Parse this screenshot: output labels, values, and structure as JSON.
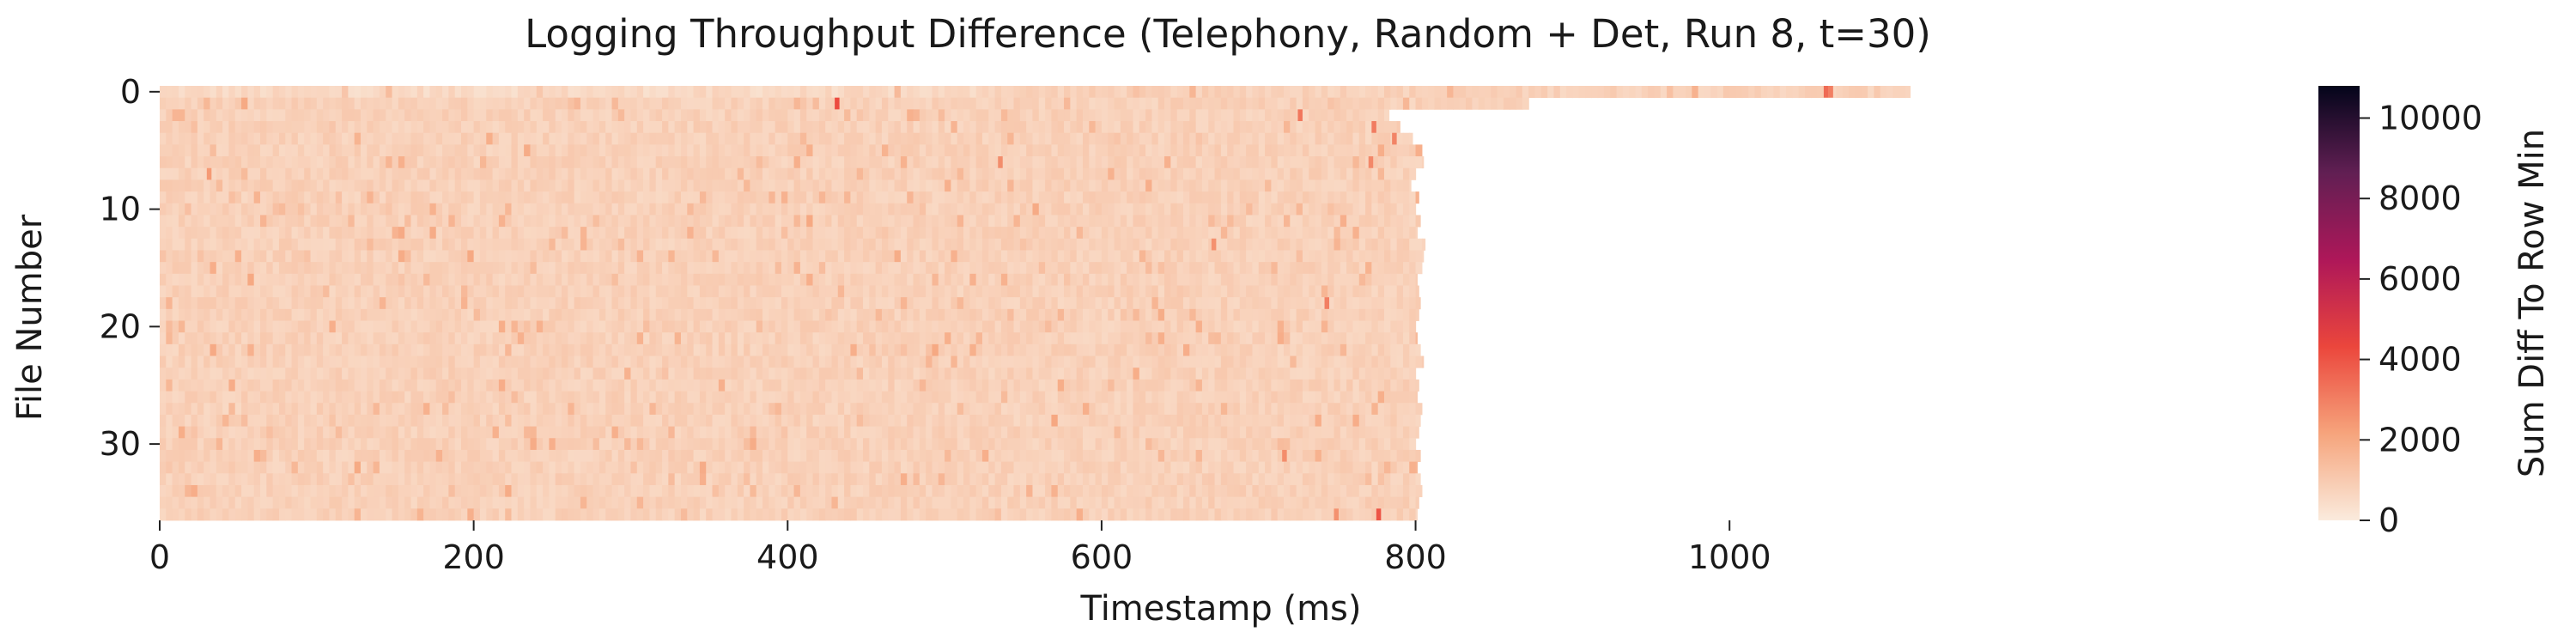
{
  "chart_data": {
    "type": "heatmap",
    "title": "Logging Throughput Difference (Telephony, Random + Det, Run 8, t=30)",
    "xlabel": "Timestamp (ms)",
    "ylabel": "File Number",
    "x_ticks": [
      0,
      200,
      400,
      600,
      800,
      1000
    ],
    "y_ticks": [
      0,
      10,
      20,
      30
    ],
    "xlim": [
      0,
      1170
    ],
    "ylim": [
      0,
      37
    ],
    "colorbar": {
      "label": "Sum Diff To Row Min",
      "min": 0,
      "max": 10800,
      "ticks": [
        0,
        2000,
        4000,
        6000,
        8000,
        10000
      ],
      "stops": [
        "#faebdd",
        "#f6a47c",
        "#eb463c",
        "#ae1759",
        "#611f53",
        "#03051a"
      ]
    },
    "row_end_ms": [
      1115,
      872,
      783,
      790,
      798,
      804,
      805,
      800,
      797,
      802,
      800,
      803,
      801,
      806,
      805,
      804,
      801,
      802,
      803,
      802,
      800,
      801,
      803,
      805,
      800,
      802,
      801,
      804,
      803,
      802,
      800,
      803,
      801,
      803,
      804,
      802,
      801
    ],
    "baseline_value": 800,
    "hotspots": [
      {
        "file": 0,
        "t": 1060,
        "value": 3500
      },
      {
        "file": 0,
        "t": 1063,
        "value": 3000
      },
      {
        "file": 1,
        "t": 430,
        "value": 4200
      },
      {
        "file": 2,
        "t": 725,
        "value": 3200
      },
      {
        "file": 3,
        "t": 772,
        "value": 3100
      },
      {
        "file": 4,
        "t": 785,
        "value": 2900
      },
      {
        "file": 6,
        "t": 534,
        "value": 2700
      },
      {
        "file": 6,
        "t": 770,
        "value": 2800
      },
      {
        "file": 7,
        "t": 30,
        "value": 2400
      },
      {
        "file": 13,
        "t": 670,
        "value": 2600
      },
      {
        "file": 18,
        "t": 742,
        "value": 3000
      },
      {
        "file": 31,
        "t": 715,
        "value": 2700
      },
      {
        "file": 36,
        "t": 775,
        "value": 4000
      },
      {
        "file": 36,
        "t": 748,
        "value": 2600
      }
    ]
  }
}
